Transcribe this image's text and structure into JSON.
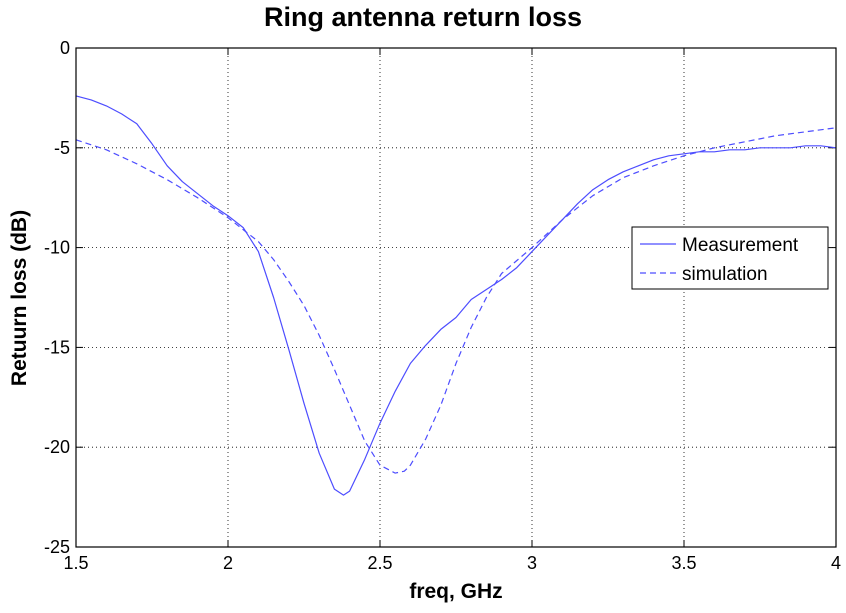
{
  "chart_data": {
    "type": "line",
    "title": "Ring antenna return loss",
    "xlabel": "freq, GHz",
    "ylabel": "Retuurn loss (dB)",
    "xlim": [
      1.5,
      4
    ],
    "ylim": [
      -25,
      0
    ],
    "xticks": [
      1.5,
      2,
      2.5,
      3,
      3.5,
      4
    ],
    "xtick_labels": [
      "1.5",
      "2",
      "2.5",
      "3",
      "3.5",
      "4"
    ],
    "yticks": [
      0,
      -5,
      -10,
      -15,
      -20,
      -25
    ],
    "ytick_labels": [
      "0",
      "-5",
      "-10",
      "-15",
      "-20",
      "-25"
    ],
    "grid": true,
    "legend_position": "right",
    "series": [
      {
        "name": "Measurement",
        "style": "solid",
        "color": "#4d4dff",
        "x": [
          1.5,
          1.55,
          1.6,
          1.65,
          1.7,
          1.75,
          1.8,
          1.85,
          1.9,
          1.95,
          2.0,
          2.05,
          2.1,
          2.15,
          2.2,
          2.25,
          2.3,
          2.35,
          2.38,
          2.4,
          2.45,
          2.5,
          2.55,
          2.6,
          2.65,
          2.7,
          2.75,
          2.8,
          2.85,
          2.9,
          2.95,
          3.0,
          3.05,
          3.1,
          3.15,
          3.2,
          3.25,
          3.3,
          3.35,
          3.4,
          3.45,
          3.5,
          3.55,
          3.6,
          3.65,
          3.7,
          3.75,
          3.8,
          3.85,
          3.9,
          3.95,
          4.0
        ],
        "y": [
          -2.4,
          -2.6,
          -2.9,
          -3.3,
          -3.8,
          -4.8,
          -5.9,
          -6.7,
          -7.3,
          -7.9,
          -8.4,
          -9.0,
          -10.2,
          -12.5,
          -15.1,
          -17.8,
          -20.3,
          -22.1,
          -22.4,
          -22.2,
          -20.6,
          -18.8,
          -17.2,
          -15.8,
          -14.9,
          -14.1,
          -13.5,
          -12.6,
          -12.1,
          -11.6,
          -11.0,
          -10.2,
          -9.4,
          -8.6,
          -7.8,
          -7.1,
          -6.6,
          -6.2,
          -5.9,
          -5.6,
          -5.4,
          -5.3,
          -5.2,
          -5.2,
          -5.1,
          -5.1,
          -5.0,
          -5.0,
          -5.0,
          -4.9,
          -4.9,
          -5.0
        ]
      },
      {
        "name": "simulation",
        "style": "dashed",
        "color": "#4d4dff",
        "x": [
          1.5,
          1.6,
          1.7,
          1.8,
          1.9,
          2.0,
          2.1,
          2.15,
          2.2,
          2.25,
          2.3,
          2.35,
          2.4,
          2.45,
          2.5,
          2.55,
          2.58,
          2.6,
          2.65,
          2.7,
          2.75,
          2.8,
          2.85,
          2.9,
          3.0,
          3.1,
          3.2,
          3.3,
          3.4,
          3.5,
          3.6,
          3.7,
          3.8,
          3.9,
          4.0
        ],
        "y": [
          -4.6,
          -5.1,
          -5.8,
          -6.6,
          -7.5,
          -8.5,
          -9.7,
          -10.6,
          -11.7,
          -12.9,
          -14.4,
          -16.1,
          -17.9,
          -19.7,
          -20.9,
          -21.3,
          -21.2,
          -20.9,
          -19.6,
          -17.9,
          -15.8,
          -14.0,
          -12.5,
          -11.3,
          -10.0,
          -8.6,
          -7.4,
          -6.5,
          -5.9,
          -5.4,
          -5.0,
          -4.7,
          -4.4,
          -4.2,
          -4.0
        ]
      }
    ]
  }
}
